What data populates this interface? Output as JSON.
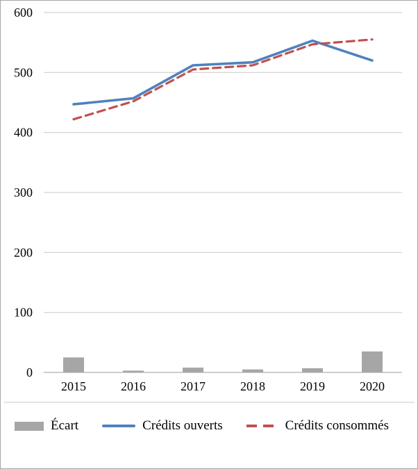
{
  "chart_data": {
    "type": "line",
    "categories": [
      "2015",
      "2016",
      "2017",
      "2018",
      "2019",
      "2020"
    ],
    "series": [
      {
        "name": "Écart",
        "type": "bar",
        "color": "#a6a6a6",
        "values": [
          25,
          3,
          8,
          5,
          7,
          35
        ]
      },
      {
        "name": "Crédits ouverts",
        "type": "line",
        "style": "solid",
        "color": "#4f81bd",
        "values": [
          447,
          457,
          512,
          517,
          553,
          520
        ]
      },
      {
        "name": "Crédits consommés",
        "type": "line",
        "style": "dashed",
        "color": "#c0504d",
        "values": [
          422,
          452,
          505,
          512,
          547,
          555
        ]
      }
    ],
    "title": "",
    "xlabel": "",
    "ylabel": "",
    "ylim": [
      0,
      600
    ],
    "yticks": [
      0,
      100,
      200,
      300,
      400,
      500,
      600
    ],
    "grid": true,
    "legend_position": "bottom",
    "colors": {
      "gridline": "#c9c9c9",
      "axis": "#9e9e9e",
      "bar": "#a6a6a6",
      "line_solid": "#4f81bd",
      "line_dashed": "#c0504d"
    }
  }
}
